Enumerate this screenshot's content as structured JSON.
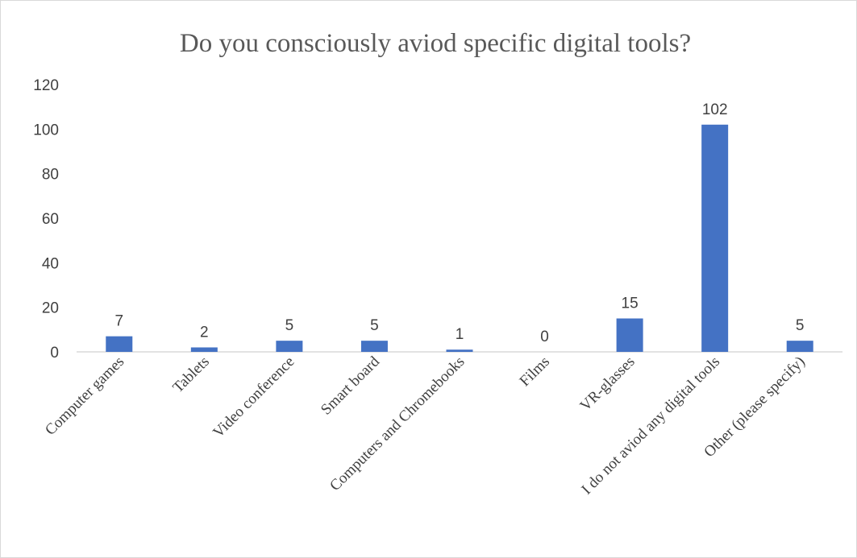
{
  "chart_data": {
    "type": "bar",
    "title": "Do you consciously aviod specific digital tools?",
    "categories": [
      "Computer games",
      "Tablets",
      "Video conference",
      "Smart board",
      "Computers and Chromebooks",
      "Films",
      "VR-glasses",
      "I do not aviod any digital tools",
      "Other (please specify)"
    ],
    "values": [
      7,
      2,
      5,
      5,
      1,
      0,
      15,
      102,
      5
    ],
    "yticks": [
      "0",
      "20",
      "40",
      "60",
      "80",
      "100",
      "120"
    ],
    "ylim": [
      0,
      120
    ],
    "xlabel": "",
    "ylabel": "",
    "grid": false,
    "legend": "none",
    "data_labels": true,
    "bar_color": "#4472c4",
    "axis_color": "#d9d9d9",
    "text_color": "#404040",
    "title_color": "#595959"
  }
}
